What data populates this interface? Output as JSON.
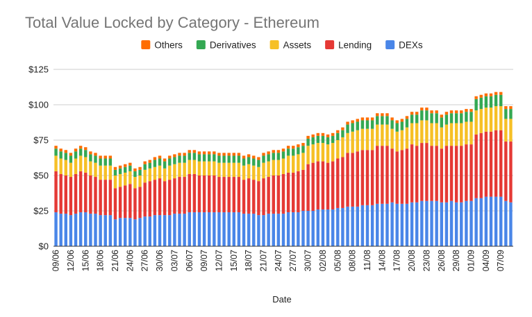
{
  "chart_data": {
    "type": "bar",
    "stacked": true,
    "title": "Total Value Locked by Category - Ethereum",
    "xlabel": "Date",
    "ylabel": "",
    "ylim": [
      0,
      125
    ],
    "yticks": [
      "$0",
      "$25",
      "$50",
      "$75",
      "$100",
      "$125"
    ],
    "ytick_values": [
      0,
      25,
      50,
      75,
      100,
      125
    ],
    "grid": true,
    "legend_position": "top",
    "legend": [
      "Others",
      "Derivatives",
      "Assets",
      "Lending",
      "DEXs"
    ],
    "x_tick_labels": [
      "09/06",
      "12/06",
      "15/06",
      "18/06",
      "21/06",
      "24/06",
      "27/06",
      "30/06",
      "03/07",
      "06/07",
      "09/07",
      "12/07",
      "15/07",
      "18/07",
      "21/07",
      "24/07",
      "27/07",
      "30/07",
      "02/08",
      "05/08",
      "08/08",
      "11/08",
      "14/08",
      "17/08",
      "20/08",
      "23/08",
      "26/08",
      "29/08",
      "01/09",
      "04/09",
      "07/09"
    ],
    "categories": [
      "09/06",
      "10/06",
      "11/06",
      "12/06",
      "13/06",
      "14/06",
      "15/06",
      "16/06",
      "17/06",
      "18/06",
      "19/06",
      "20/06",
      "21/06",
      "22/06",
      "23/06",
      "24/06",
      "25/06",
      "26/06",
      "27/06",
      "28/06",
      "29/06",
      "30/06",
      "01/07",
      "02/07",
      "03/07",
      "04/07",
      "05/07",
      "06/07",
      "07/07",
      "08/07",
      "09/07",
      "10/07",
      "11/07",
      "12/07",
      "13/07",
      "14/07",
      "15/07",
      "16/07",
      "17/07",
      "18/07",
      "19/07",
      "20/07",
      "21/07",
      "22/07",
      "23/07",
      "24/07",
      "25/07",
      "26/07",
      "27/07",
      "28/07",
      "29/07",
      "30/07",
      "31/07",
      "01/08",
      "02/08",
      "03/08",
      "04/08",
      "05/08",
      "06/08",
      "07/08",
      "08/08",
      "09/08",
      "10/08",
      "11/08",
      "12/08",
      "13/08",
      "14/08",
      "15/08",
      "16/08",
      "17/08",
      "18/08",
      "19/08",
      "20/08",
      "21/08",
      "22/08",
      "23/08",
      "24/08",
      "25/08",
      "26/08",
      "27/08",
      "28/08",
      "29/08",
      "30/08",
      "31/08",
      "01/09",
      "02/09",
      "03/09",
      "04/09",
      "05/09",
      "06/09",
      "07/09",
      "08/09",
      "09/09"
    ],
    "series": [
      {
        "name": "DEXs",
        "color": "#4a86e8",
        "values": [
          24,
          23,
          23,
          22,
          23,
          24,
          24,
          23,
          23,
          22,
          22,
          22,
          19,
          20,
          20,
          20,
          19,
          20,
          21,
          21,
          22,
          22,
          22,
          22,
          23,
          23,
          23,
          24,
          24,
          24,
          24,
          24,
          24,
          24,
          24,
          24,
          24,
          24,
          23,
          23,
          23,
          22,
          22,
          23,
          23,
          23,
          23,
          24,
          24,
          24,
          25,
          25,
          25,
          26,
          26,
          26,
          26,
          27,
          27,
          28,
          28,
          28,
          29,
          29,
          29,
          30,
          30,
          30,
          31,
          30,
          30,
          30,
          31,
          31,
          32,
          32,
          32,
          32,
          31,
          31,
          32,
          31,
          31,
          32,
          32,
          34,
          34,
          35,
          35,
          35,
          35,
          32,
          31
        ]
      },
      {
        "name": "Lending",
        "color": "#e53935",
        "values": [
          29,
          28,
          27,
          27,
          28,
          29,
          28,
          27,
          26,
          25,
          25,
          25,
          22,
          22,
          23,
          24,
          22,
          22,
          24,
          25,
          25,
          26,
          24,
          25,
          25,
          26,
          26,
          27,
          27,
          26,
          26,
          26,
          26,
          25,
          25,
          25,
          25,
          25,
          24,
          25,
          24,
          24,
          26,
          26,
          27,
          27,
          28,
          28,
          28,
          29,
          29,
          33,
          34,
          34,
          34,
          33,
          34,
          35,
          36,
          38,
          38,
          39,
          39,
          39,
          39,
          41,
          41,
          41,
          38,
          37,
          38,
          39,
          41,
          40,
          41,
          41,
          39,
          39,
          38,
          40,
          39,
          40,
          40,
          40,
          40,
          45,
          46,
          46,
          46,
          47,
          47,
          42,
          43
        ]
      },
      {
        "name": "Assets",
        "color": "#f6c026",
        "values": [
          11,
          11,
          11,
          10,
          11,
          11,
          11,
          10,
          10,
          10,
          10,
          10,
          9,
          9,
          9,
          9,
          8,
          8,
          9,
          9,
          9,
          9,
          9,
          10,
          10,
          10,
          10,
          10,
          10,
          10,
          10,
          10,
          10,
          10,
          10,
          10,
          10,
          10,
          10,
          10,
          10,
          10,
          11,
          11,
          11,
          11,
          11,
          12,
          12,
          12,
          12,
          13,
          13,
          13,
          13,
          13,
          13,
          13,
          14,
          14,
          15,
          15,
          15,
          15,
          15,
          15,
          15,
          15,
          14,
          14,
          14,
          15,
          15,
          16,
          16,
          16,
          16,
          16,
          15,
          15,
          16,
          16,
          16,
          16,
          16,
          17,
          17,
          17,
          17,
          17,
          17,
          16,
          16
        ]
      },
      {
        "name": "Derivatives",
        "color": "#34a853",
        "values": [
          5,
          5,
          5,
          5,
          5,
          5,
          5,
          5,
          5,
          5,
          5,
          5,
          4,
          4,
          4,
          4,
          4,
          4,
          4,
          4,
          5,
          5,
          5,
          5,
          5,
          5,
          5,
          5,
          5,
          5,
          5,
          5,
          5,
          5,
          5,
          5,
          5,
          5,
          5,
          5,
          5,
          5,
          5,
          5,
          5,
          5,
          5,
          5,
          5,
          5,
          5,
          5,
          5,
          5,
          5,
          5,
          5,
          5,
          5,
          6,
          6,
          6,
          6,
          6,
          6,
          6,
          6,
          6,
          6,
          6,
          6,
          6,
          6,
          6,
          7,
          7,
          7,
          7,
          7,
          7,
          7,
          7,
          7,
          7,
          7,
          8,
          8,
          8,
          8,
          8,
          8,
          7,
          7
        ]
      },
      {
        "name": "Others",
        "color": "#ff6d01",
        "values": [
          2,
          2,
          2,
          2,
          2,
          2,
          2,
          2,
          2,
          2,
          2,
          2,
          2,
          2,
          2,
          2,
          2,
          2,
          2,
          2,
          2,
          2,
          2,
          2,
          2,
          2,
          2,
          2,
          2,
          2,
          2,
          2,
          2,
          2,
          2,
          2,
          2,
          2,
          2,
          2,
          2,
          2,
          2,
          2,
          2,
          2,
          2,
          2,
          2,
          2,
          2,
          2,
          2,
          2,
          2,
          2,
          2,
          2,
          2,
          2,
          2,
          2,
          2,
          2,
          2,
          2,
          2,
          2,
          2,
          2,
          2,
          2,
          2,
          2,
          2,
          2,
          2,
          2,
          2,
          2,
          2,
          2,
          2,
          2,
          2,
          2,
          2,
          2,
          2,
          2,
          2,
          2,
          2
        ]
      }
    ]
  }
}
